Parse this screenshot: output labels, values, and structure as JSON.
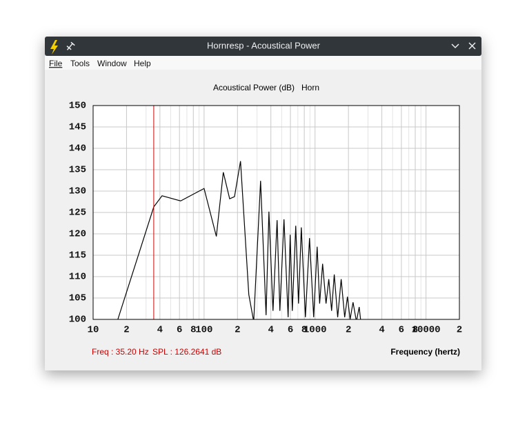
{
  "window": {
    "title": "Hornresp - Acoustical Power",
    "menu": [
      "File",
      "Tools",
      "Window",
      "Help"
    ]
  },
  "chart_data": {
    "type": "line",
    "title": "Acoustical Power (dB)",
    "subtitle": "Horn",
    "x_label": "Frequency (hertz)",
    "log_x": true,
    "grid": true,
    "color": "#000000",
    "xlim": [
      10,
      20000
    ],
    "ylim": [
      100,
      150
    ],
    "xticks": [
      10,
      {
        "value": 20,
        "label": "2"
      },
      {
        "value": 40,
        "label": "4"
      },
      {
        "value": 60,
        "label": "6"
      },
      {
        "value": 80,
        "label": "8"
      },
      100,
      {
        "value": 200,
        "label": "2"
      },
      {
        "value": 400,
        "label": "4"
      },
      {
        "value": 600,
        "label": "6"
      },
      {
        "value": 800,
        "label": "8"
      },
      1000,
      {
        "value": 2000,
        "label": "2"
      },
      {
        "value": 4000,
        "label": "4"
      },
      {
        "value": 6000,
        "label": "6"
      },
      {
        "value": 8000,
        "label": "8"
      },
      10000,
      {
        "value": 20000,
        "label": "2"
      }
    ],
    "minor_xticks": [
      30,
      50,
      70,
      90,
      300,
      500,
      700,
      900,
      3000,
      5000,
      7000,
      9000
    ],
    "yticks": [
      100,
      105,
      110,
      115,
      120,
      125,
      130,
      135,
      140,
      145,
      150
    ],
    "x": [
      16.7,
      35.2,
      41.8,
      61.5,
      100,
      129,
      149,
      170,
      188,
      213,
      253,
      280,
      323,
      362,
      384,
      418,
      455,
      482,
      525,
      572,
      597,
      624,
      670,
      710,
      752,
      819,
      892,
      972,
      1045,
      1100,
      1170,
      1256,
      1330,
      1410,
      1490,
      1600,
      1720,
      1850,
      1960,
      2070,
      2200,
      2360,
      2500,
      2600
    ],
    "values": [
      100,
      126.3,
      128.9,
      127.7,
      130.6,
      119.4,
      134.4,
      128.2,
      128.7,
      137,
      105.8,
      99.5,
      132.4,
      101,
      125.2,
      102,
      123.2,
      102,
      123.4,
      100.5,
      119.8,
      102,
      121.9,
      103.7,
      121.5,
      100.5,
      119,
      100.5,
      117,
      103.7,
      113,
      103.7,
      109.4,
      102,
      110.5,
      100.5,
      109.4,
      100.5,
      105.3,
      100,
      104,
      99.5,
      102.9,
      98.9
    ],
    "cursor": {
      "value": 35.2,
      "label": "Freq : 35.20 Hz"
    },
    "cursor_level": {
      "value": 126.2641,
      "label": "SPL : 126.2641 dB"
    },
    "cursor_color": "#cc0000"
  }
}
